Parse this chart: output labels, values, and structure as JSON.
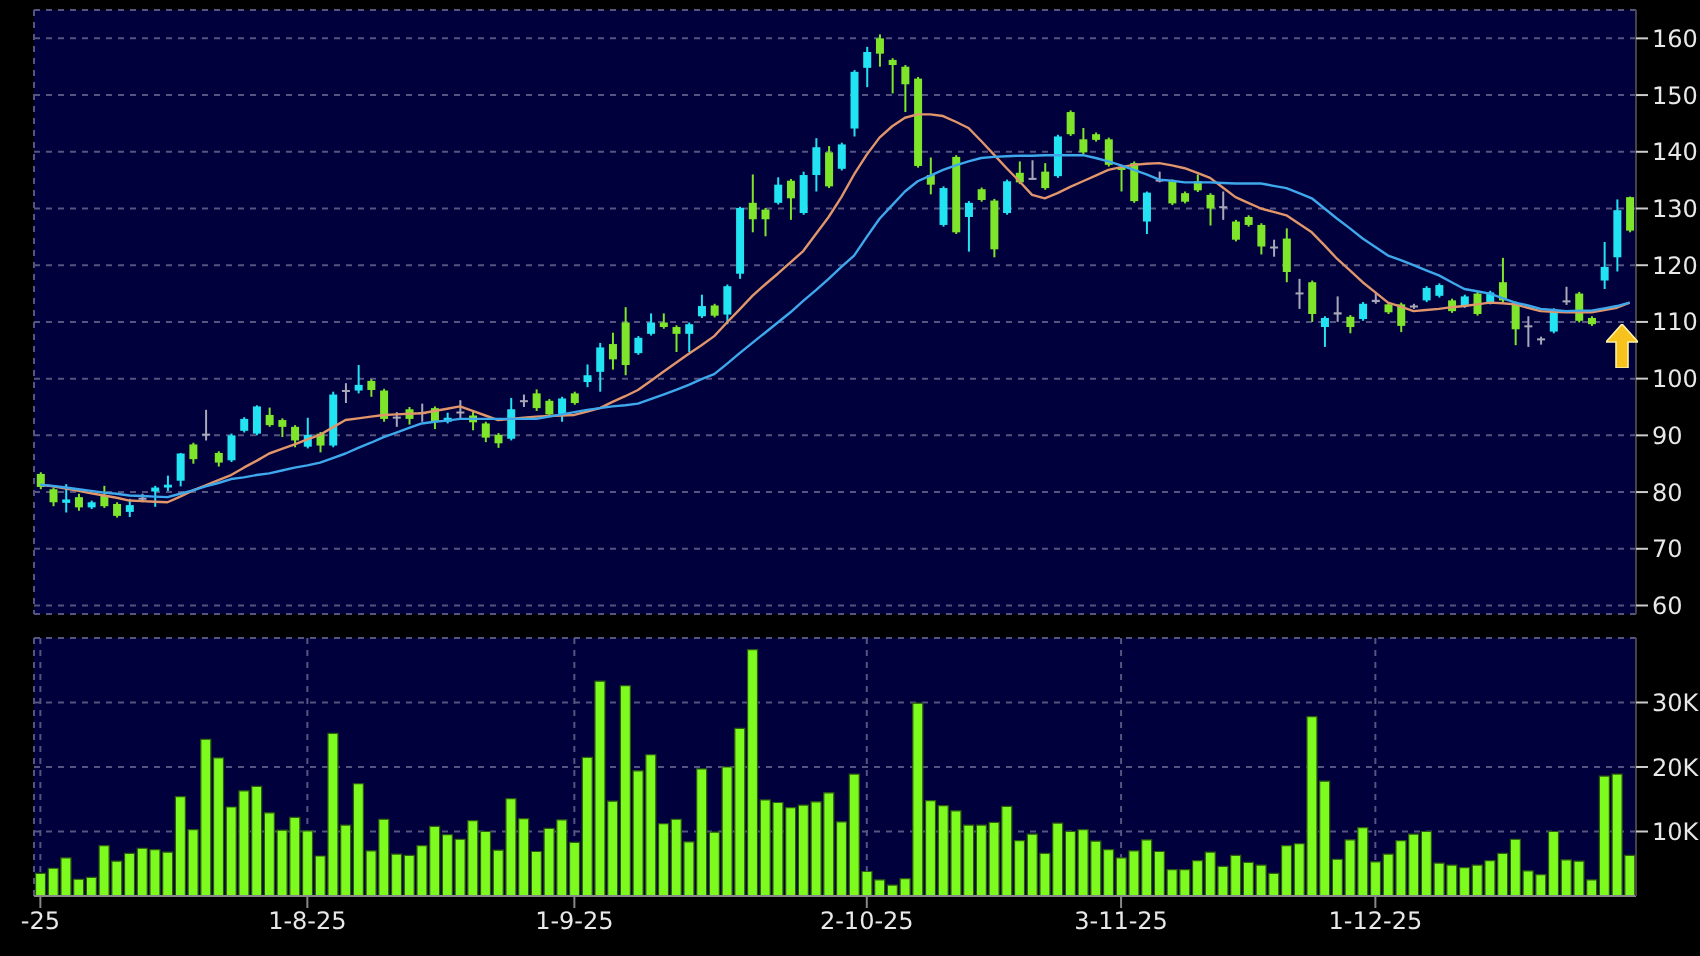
{
  "chart_data": [
    {
      "type": "candlestick",
      "ohlc": [
        [
          83.2,
          83.5,
          80.5,
          80.9
        ],
        [
          80.5,
          80.8,
          77.5,
          78.2
        ],
        [
          78.1,
          81.4,
          76.4,
          78.7
        ],
        [
          79.1,
          79.7,
          76.7,
          77.3
        ],
        [
          77.3,
          78.5,
          77.0,
          78.2
        ],
        [
          79.4,
          81.1,
          77.2,
          77.5
        ],
        [
          77.9,
          78.2,
          75.5,
          75.8
        ],
        [
          76.5,
          78.8,
          75.6,
          77.7
        ],
        [
          79.0,
          79.7,
          78.2,
          79.0
        ],
        [
          80.1,
          81.1,
          77.4,
          80.8
        ],
        [
          80.8,
          82.9,
          80.2,
          81.3
        ],
        [
          82.0,
          86.9,
          81.0,
          86.8
        ],
        [
          88.4,
          88.7,
          85.0,
          85.8
        ],
        [
          90.3,
          94.5,
          89.1,
          90.3
        ],
        [
          86.9,
          87.2,
          84.5,
          85.2
        ],
        [
          85.6,
          90.3,
          85.3,
          90.0
        ],
        [
          90.8,
          93.2,
          90.5,
          92.9
        ],
        [
          90.3,
          95.3,
          90.0,
          95.1
        ],
        [
          93.6,
          94.9,
          91.5,
          91.8
        ],
        [
          92.7,
          93.0,
          89.7,
          91.5
        ],
        [
          91.5,
          91.8,
          87.9,
          89.1
        ],
        [
          88.0,
          93.1,
          87.7,
          90.1
        ],
        [
          90.3,
          90.6,
          87.0,
          88.2
        ],
        [
          88.2,
          97.7,
          87.9,
          97.2
        ],
        [
          98.0,
          99.2,
          95.7,
          98.0
        ],
        [
          97.9,
          102.4,
          97.4,
          98.9
        ],
        [
          99.6,
          99.9,
          96.8,
          98.0
        ],
        [
          97.9,
          98.2,
          92.4,
          92.9
        ],
        [
          93.3,
          94.1,
          91.5,
          93.3
        ],
        [
          94.6,
          95.0,
          91.9,
          92.9
        ],
        [
          94.0,
          95.6,
          92.4,
          94.1
        ],
        [
          94.8,
          95.1,
          91.1,
          92.4
        ],
        [
          92.4,
          94.0,
          92.1,
          93.1
        ],
        [
          94.2,
          96.2,
          92.9,
          94.2
        ],
        [
          93.5,
          94.3,
          90.9,
          92.3
        ],
        [
          92.1,
          92.4,
          88.8,
          89.6
        ],
        [
          90.1,
          90.4,
          87.8,
          88.6
        ],
        [
          89.4,
          96.6,
          89.1,
          94.6
        ],
        [
          96.2,
          97.2,
          95.0,
          96.2
        ],
        [
          97.4,
          98.1,
          94.3,
          94.8
        ],
        [
          96.1,
          96.4,
          93.4,
          93.7
        ],
        [
          93.6,
          96.8,
          92.4,
          96.5
        ],
        [
          97.4,
          97.7,
          95.4,
          95.7
        ],
        [
          99.4,
          102.5,
          98.5,
          100.6
        ],
        [
          101.2,
          106.3,
          97.7,
          105.5
        ],
        [
          106.1,
          108.1,
          101.6,
          103.4
        ],
        [
          109.9,
          112.6,
          100.6,
          102.4
        ],
        [
          104.5,
          107.5,
          104.2,
          107.2
        ],
        [
          107.9,
          111.5,
          107.6,
          109.9
        ],
        [
          109.9,
          111.5,
          108.8,
          109.1
        ],
        [
          109.1,
          109.4,
          104.7,
          107.9
        ],
        [
          107.9,
          109.9,
          104.7,
          109.6
        ],
        [
          111.0,
          114.8,
          110.7,
          112.8
        ],
        [
          112.9,
          113.2,
          110.8,
          111.1
        ],
        [
          111.3,
          116.6,
          109.6,
          116.3
        ],
        [
          118.5,
          130.3,
          117.6,
          130.1
        ],
        [
          131.0,
          136.0,
          125.8,
          128.1
        ],
        [
          129.8,
          130.1,
          125.1,
          128.1
        ],
        [
          131.0,
          135.5,
          130.7,
          134.2
        ],
        [
          134.9,
          135.2,
          128.0,
          131.8
        ],
        [
          129.2,
          136.5,
          128.9,
          135.9
        ],
        [
          135.9,
          142.4,
          133.0,
          140.8
        ],
        [
          139.9,
          141.0,
          133.6,
          133.9
        ],
        [
          137.0,
          141.6,
          136.7,
          141.3
        ],
        [
          144.1,
          154.4,
          142.7,
          154.1
        ],
        [
          154.8,
          158.5,
          151.4,
          157.6
        ],
        [
          160.0,
          160.7,
          155.0,
          157.3
        ],
        [
          156.2,
          156.5,
          150.3,
          155.3
        ],
        [
          155.0,
          155.3,
          147.0,
          151.9
        ],
        [
          152.9,
          153.2,
          137.2,
          137.5
        ],
        [
          135.9,
          139.0,
          132.5,
          134.2
        ],
        [
          127.1,
          133.9,
          126.8,
          133.6
        ],
        [
          139.1,
          139.4,
          125.5,
          125.8
        ],
        [
          128.5,
          131.3,
          122.4,
          131.0
        ],
        [
          133.4,
          133.7,
          131.2,
          131.5
        ],
        [
          131.4,
          131.7,
          121.4,
          122.8
        ],
        [
          129.2,
          135.1,
          128.9,
          134.8
        ],
        [
          136.3,
          138.3,
          134.3,
          134.6
        ],
        [
          135.4,
          138.5,
          135.1,
          135.4
        ],
        [
          136.5,
          138.0,
          133.3,
          133.6
        ],
        [
          135.7,
          143.0,
          135.4,
          142.7
        ],
        [
          147.0,
          147.3,
          142.8,
          143.1
        ],
        [
          142.2,
          144.2,
          139.6,
          139.9
        ],
        [
          143.1,
          143.4,
          141.8,
          142.1
        ],
        [
          142.2,
          142.5,
          137.4,
          137.7
        ],
        [
          137.3,
          137.6,
          133.0,
          136.8
        ],
        [
          138.0,
          138.3,
          131.0,
          131.3
        ],
        [
          127.7,
          133.0,
          125.5,
          132.8
        ],
        [
          134.9,
          136.5,
          134.6,
          135.1
        ],
        [
          134.8,
          135.1,
          130.6,
          130.9
        ],
        [
          132.7,
          133.0,
          130.9,
          131.2
        ],
        [
          134.8,
          136.0,
          132.9,
          133.2
        ],
        [
          132.4,
          132.7,
          127.0,
          130.0
        ],
        [
          130.4,
          133.0,
          128.0,
          130.4
        ],
        [
          127.7,
          128.0,
          124.2,
          124.5
        ],
        [
          128.5,
          128.8,
          126.8,
          127.1
        ],
        [
          127.1,
          127.4,
          121.9,
          123.3
        ],
        [
          123.3,
          124.5,
          121.5,
          123.3
        ],
        [
          124.7,
          126.5,
          117.0,
          118.8
        ],
        [
          115.2,
          117.6,
          112.3,
          115.2
        ],
        [
          117.0,
          117.3,
          110.0,
          111.4
        ],
        [
          109.1,
          111.0,
          105.6,
          110.7
        ],
        [
          111.3,
          114.5,
          110.0,
          111.7
        ],
        [
          110.9,
          111.2,
          108.0,
          109.1
        ],
        [
          110.5,
          113.5,
          110.2,
          113.2
        ],
        [
          113.5,
          115.2,
          113.2,
          113.9
        ],
        [
          113.1,
          113.4,
          111.4,
          111.7
        ],
        [
          113.1,
          113.4,
          108.2,
          109.3
        ],
        [
          112.6,
          113.2,
          112.3,
          112.9
        ],
        [
          113.8,
          116.3,
          113.5,
          116.0
        ],
        [
          114.6,
          116.8,
          114.3,
          116.5
        ],
        [
          113.8,
          114.1,
          111.6,
          111.9
        ],
        [
          112.8,
          114.8,
          112.5,
          114.5
        ],
        [
          115.0,
          115.3,
          111.1,
          111.4
        ],
        [
          113.4,
          115.5,
          113.1,
          115.2
        ],
        [
          117.0,
          121.3,
          113.5,
          113.8
        ],
        [
          113.3,
          113.6,
          105.9,
          108.7
        ],
        [
          109.4,
          111.0,
          105.6,
          109.3
        ],
        [
          107.1,
          107.4,
          106.0,
          107.1
        ],
        [
          108.3,
          112.4,
          108.0,
          112.1
        ],
        [
          113.8,
          116.2,
          113.0,
          113.8
        ],
        [
          115.0,
          115.3,
          109.9,
          110.2
        ],
        [
          110.7,
          111.0,
          109.3,
          109.6
        ],
        [
          117.3,
          124.1,
          115.8,
          119.7
        ],
        [
          121.4,
          131.6,
          118.9,
          129.7
        ],
        [
          132.0,
          132.1,
          125.8,
          126.1
        ]
      ],
      "colors": [
        "#7ee52b",
        "#7ee52b",
        "#22e3f2",
        "#7ee52b",
        "#22e3f2",
        "#7ee52b",
        "#7ee52b",
        "#22e3f2",
        "#a8a8b8",
        "#22e3f2",
        "#22e3f2",
        "#22e3f2",
        "#7ee52b",
        "#a8a8b8",
        "#7ee52b",
        "#22e3f2",
        "#22e3f2",
        "#22e3f2",
        "#7ee52b",
        "#7ee52b",
        "#7ee52b",
        "#22e3f2",
        "#7ee52b",
        "#22e3f2",
        "#a8a8b8",
        "#22e3f2",
        "#7ee52b",
        "#7ee52b",
        "#a8a8b8",
        "#7ee52b",
        "#a8a8b8",
        "#7ee52b",
        "#22e3f2",
        "#a8a8b8",
        "#7ee52b",
        "#7ee52b",
        "#7ee52b",
        "#22e3f2",
        "#a8a8b8",
        "#7ee52b",
        "#7ee52b",
        "#22e3f2",
        "#7ee52b",
        "#22e3f2",
        "#22e3f2",
        "#7ee52b",
        "#7ee52b",
        "#22e3f2",
        "#22e3f2",
        "#7ee52b",
        "#7ee52b",
        "#22e3f2",
        "#22e3f2",
        "#7ee52b",
        "#22e3f2",
        "#22e3f2",
        "#7ee52b",
        "#7ee52b",
        "#22e3f2",
        "#7ee52b",
        "#22e3f2",
        "#22e3f2",
        "#7ee52b",
        "#22e3f2",
        "#22e3f2",
        "#22e3f2",
        "#7ee52b",
        "#7ee52b",
        "#7ee52b",
        "#7ee52b",
        "#7ee52b",
        "#22e3f2",
        "#7ee52b",
        "#22e3f2",
        "#7ee52b",
        "#7ee52b",
        "#22e3f2",
        "#7ee52b",
        "#a8a8b8",
        "#7ee52b",
        "#22e3f2",
        "#7ee52b",
        "#7ee52b",
        "#7ee52b",
        "#7ee52b",
        "#7ee52b",
        "#7ee52b",
        "#22e3f2",
        "#a8a8b8",
        "#7ee52b",
        "#7ee52b",
        "#7ee52b",
        "#7ee52b",
        "#a8a8b8",
        "#7ee52b",
        "#7ee52b",
        "#7ee52b",
        "#a8a8b8",
        "#7ee52b",
        "#a8a8b8",
        "#7ee52b",
        "#22e3f2",
        "#a8a8b8",
        "#7ee52b",
        "#22e3f2",
        "#a8a8b8",
        "#7ee52b",
        "#7ee52b",
        "#a8a8b8",
        "#22e3f2",
        "#22e3f2",
        "#7ee52b",
        "#22e3f2",
        "#7ee52b",
        "#22e3f2",
        "#7ee52b",
        "#7ee52b",
        "#a8a8b8",
        "#a8a8b8",
        "#22e3f2",
        "#a8a8b8",
        "#7ee52b",
        "#7ee52b",
        "#22e3f2",
        "#22e3f2",
        "#7ee52b"
      ],
      "series": [
        {
          "type": "line",
          "color": "#e0956a",
          "values": [
            81.3,
            81.0,
            80.6,
            80.2,
            79.8,
            79.4,
            79.0,
            78.5,
            78.4,
            78.3,
            78.2,
            79.2,
            80.3,
            81.2,
            82.1,
            83.0,
            84.3,
            85.5,
            86.8,
            87.6,
            88.4,
            89.3,
            90.1,
            91.4,
            92.7,
            93.0,
            93.3,
            93.6,
            93.7,
            93.8,
            93.9,
            94.3,
            94.7,
            95.1,
            94.3,
            93.5,
            92.7,
            92.9,
            93.1,
            93.3,
            93.4,
            93.5,
            93.6,
            94.2,
            94.8,
            95.9,
            96.9,
            98.0,
            99.6,
            101.2,
            102.8,
            104.4,
            105.9,
            107.5,
            109.9,
            112.2,
            114.6,
            116.6,
            118.5,
            120.5,
            122.5,
            125.5,
            128.5,
            132.0,
            136.0,
            139.5,
            142.5,
            144.5,
            146.0,
            146.6,
            146.6,
            146.3,
            145.3,
            144.2,
            141.9,
            139.5,
            137.1,
            134.8,
            132.4,
            131.8,
            132.7,
            133.8,
            134.8,
            135.8,
            136.8,
            137.3,
            137.7,
            137.9,
            138.0,
            137.6,
            137.1,
            136.3,
            135.4,
            133.7,
            132.0,
            131.0,
            130.0,
            129.4,
            128.8,
            127.3,
            125.8,
            123.5,
            121.1,
            119.1,
            117.0,
            115.2,
            113.4,
            112.7,
            111.9,
            112.1,
            112.3,
            112.6,
            112.8,
            113.1,
            113.4,
            113.3,
            113.1,
            112.5,
            111.9,
            111.8,
            111.7,
            111.7,
            111.7,
            112.1,
            112.5,
            113.4
          ]
        },
        {
          "type": "line",
          "color": "#3ea8ec",
          "values": [
            81.3,
            81.1,
            80.8,
            80.5,
            80.2,
            79.9,
            79.7,
            79.4,
            79.3,
            79.2,
            79.1,
            79.7,
            80.3,
            81.0,
            81.6,
            82.3,
            82.6,
            83.0,
            83.3,
            83.8,
            84.3,
            84.7,
            85.2,
            86.0,
            86.8,
            87.8,
            88.7,
            89.7,
            90.5,
            91.3,
            92.1,
            92.4,
            92.6,
            92.9,
            92.9,
            92.9,
            92.9,
            92.9,
            92.9,
            92.9,
            93.3,
            93.7,
            94.1,
            94.5,
            94.8,
            95.1,
            95.3,
            95.6,
            96.4,
            97.2,
            98.0,
            98.9,
            99.9,
            100.8,
            102.6,
            104.5,
            106.3,
            108.1,
            109.9,
            111.7,
            113.7,
            115.6,
            117.6,
            119.7,
            121.7,
            125.0,
            128.2,
            130.6,
            133.0,
            134.8,
            135.8,
            136.8,
            137.6,
            138.3,
            138.9,
            139.1,
            139.2,
            139.3,
            139.3,
            139.4,
            139.4,
            139.4,
            139.4,
            138.9,
            138.3,
            137.6,
            136.8,
            136.0,
            135.1,
            134.9,
            134.6,
            134.6,
            134.6,
            134.5,
            134.4,
            134.4,
            134.4,
            134.0,
            133.6,
            132.7,
            131.8,
            130.0,
            128.2,
            126.5,
            124.7,
            123.2,
            121.7,
            120.9,
            120.0,
            119.1,
            118.2,
            117.0,
            115.8,
            115.4,
            115.0,
            114.2,
            113.4,
            112.9,
            112.3,
            112.1,
            111.9,
            112.0,
            112.0,
            112.4,
            112.8,
            113.4
          ]
        }
      ],
      "ylim": [
        58.5,
        165
      ],
      "yticks": [
        60,
        70,
        80,
        90,
        100,
        110,
        120,
        130,
        140,
        150,
        160
      ],
      "grid": true,
      "tick_labels": "y",
      "marker": "none"
    },
    {
      "type": "bar",
      "categories": [
        "-25",
        null,
        null,
        null,
        null,
        null,
        null,
        null,
        null,
        null,
        null,
        null,
        null,
        null,
        null,
        null,
        null,
        null,
        null,
        null,
        null,
        "1-8-25",
        null,
        null,
        null,
        null,
        null,
        null,
        null,
        null,
        null,
        null,
        null,
        null,
        null,
        null,
        null,
        null,
        null,
        null,
        null,
        null,
        "1-9-25",
        null,
        null,
        null,
        null,
        null,
        null,
        null,
        null,
        null,
        null,
        null,
        null,
        null,
        null,
        null,
        null,
        null,
        null,
        null,
        null,
        null,
        null,
        "2-10-25",
        null,
        null,
        null,
        null,
        null,
        null,
        null,
        null,
        null,
        null,
        null,
        null,
        null,
        null,
        null,
        null,
        null,
        null,
        null,
        "3-11-25",
        null,
        null,
        null,
        null,
        null,
        null,
        null,
        null,
        null,
        null,
        null,
        null,
        null,
        null,
        null,
        null,
        null,
        null,
        null,
        "1-12-25",
        null,
        null,
        null,
        null,
        null,
        null,
        null,
        null,
        null,
        null,
        null,
        null,
        null,
        null,
        null,
        null,
        null,
        null,
        null,
        null
      ],
      "values": [
        3500,
        4300,
        5900,
        2600,
        2900,
        7800,
        5400,
        6600,
        7400,
        7200,
        6800,
        15400,
        10300,
        24300,
        21400,
        13800,
        16300,
        17000,
        12900,
        10200,
        12200,
        10100,
        6200,
        25200,
        11000,
        17400,
        7000,
        11900,
        6500,
        6300,
        7800,
        10800,
        9500,
        8800,
        11700,
        10000,
        7100,
        15100,
        12000,
        6900,
        10500,
        11800,
        8300,
        21500,
        33300,
        14700,
        32600,
        19400,
        21900,
        11200,
        11900,
        8400,
        19700,
        9900,
        20000,
        26000,
        38200,
        14900,
        14500,
        13700,
        14100,
        14600,
        16000,
        11500,
        18900,
        3800,
        2500,
        1700,
        2700,
        29900,
        14800,
        14000,
        13200,
        11000,
        11000,
        11400,
        13900,
        8600,
        9600,
        6600,
        11300,
        10000,
        10300,
        8500,
        7200,
        5900,
        7000,
        8700,
        6900,
        4100,
        4100,
        5500,
        6800,
        4600,
        6300,
        5200,
        4800,
        3500,
        7800,
        8100,
        27800,
        17800,
        5700,
        8700,
        10600,
        5300,
        6500,
        8600,
        9600,
        10000,
        5100,
        4800,
        4400,
        4800,
        5500,
        6600,
        8800,
        3900,
        3300,
        10000,
        5600,
        5400,
        2500,
        18600,
        18900,
        6300
      ],
      "color": "#7dfa1e",
      "ylim": [
        0,
        40000
      ],
      "yticks": [
        {
          "value": 10000,
          "label": "10K"
        },
        {
          "value": 20000,
          "label": "20K"
        },
        {
          "value": 30000,
          "label": "30K"
        }
      ],
      "grid": true
    }
  ]
}
